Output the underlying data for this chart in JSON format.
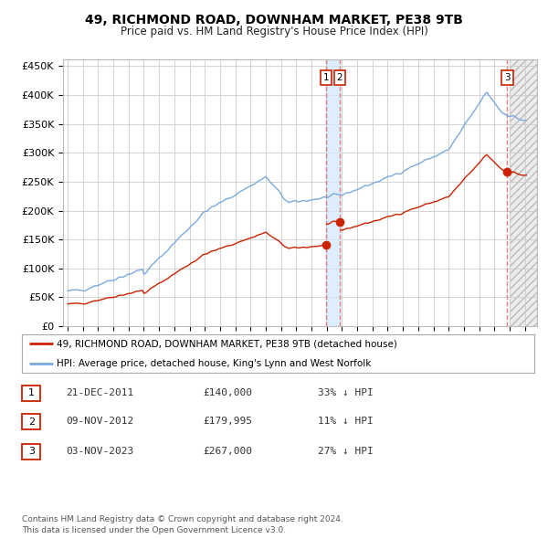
{
  "title": "49, RICHMOND ROAD, DOWNHAM MARKET, PE38 9TB",
  "subtitle": "Price paid vs. HM Land Registry's House Price Index (HPI)",
  "ylabel_ticks": [
    "£0",
    "£50K",
    "£100K",
    "£150K",
    "£200K",
    "£250K",
    "£300K",
    "£350K",
    "£400K",
    "£450K"
  ],
  "ytick_values": [
    0,
    50000,
    100000,
    150000,
    200000,
    250000,
    300000,
    350000,
    400000,
    450000
  ],
  "ylim": [
    0,
    462000
  ],
  "xlim_start": 1994.7,
  "xlim_end": 2025.8,
  "sale_dates": [
    2011.97,
    2012.86,
    2023.84
  ],
  "sale_prices": [
    140000,
    179995,
    267000
  ],
  "sale_labels": [
    "1",
    "2",
    "3"
  ],
  "vline_color": "#e08080",
  "hpi_color": "#7aaadd",
  "price_color": "#cc2200",
  "legend_text1": "49, RICHMOND ROAD, DOWNHAM MARKET, PE38 9TB (detached house)",
  "legend_text2": "HPI: Average price, detached house, King's Lynn and West Norfolk",
  "table_rows": [
    {
      "label": "1",
      "date": "21-DEC-2011",
      "price": "£140,000",
      "pct": "33% ↓ HPI"
    },
    {
      "label": "2",
      "date": "09-NOV-2012",
      "price": "£179,995",
      "pct": "11% ↓ HPI"
    },
    {
      "label": "3",
      "date": "03-NOV-2023",
      "price": "£267,000",
      "pct": "27% ↓ HPI"
    }
  ],
  "footer_line1": "Contains HM Land Registry data © Crown copyright and database right 2024.",
  "footer_line2": "This data is licensed under the Open Government Licence v3.0.",
  "hatch_region_start": 2024.0,
  "hatch_region_end": 2025.8,
  "shade_region_start": 2011.97,
  "shade_region_end": 2012.86
}
